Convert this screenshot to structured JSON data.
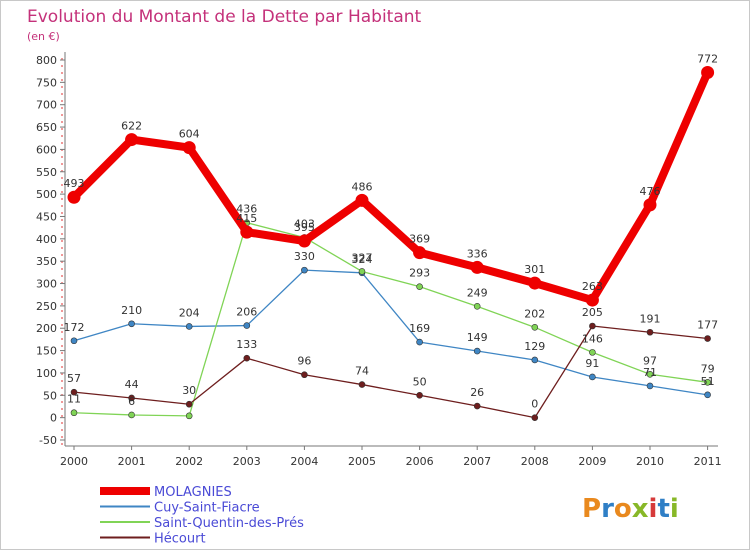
{
  "chart_data": {
    "type": "line",
    "title": "Evolution du Montant de la Dette par Habitant",
    "subtitle": "(en €)",
    "xlabel": "",
    "ylabel": "",
    "categories": [
      "2000",
      "2001",
      "2002",
      "2003",
      "2004",
      "2005",
      "2006",
      "2007",
      "2008",
      "2009",
      "2010",
      "2011"
    ],
    "ylim": [
      -50,
      800
    ],
    "yticks": [
      -50,
      0,
      50,
      100,
      150,
      200,
      250,
      300,
      350,
      400,
      450,
      500,
      550,
      600,
      650,
      700,
      750,
      800
    ],
    "grid": false,
    "legend_position": "bottom-left",
    "series": [
      {
        "name": "MOLAGNIES",
        "color": "#ee0000",
        "values": [
          493,
          622,
          604,
          415,
          395,
          486,
          369,
          336,
          301,
          263,
          476,
          772
        ],
        "labels": [
          "493",
          "622",
          "604",
          "415",
          "395",
          "486",
          "369",
          "336",
          "301",
          "263",
          "476",
          "772"
        ]
      },
      {
        "name": "Cuy-Saint-Fiacre",
        "color": "#3f86c4",
        "values": [
          172,
          210,
          204,
          206,
          330,
          324,
          169,
          149,
          129,
          91,
          71,
          51
        ],
        "labels": [
          "172",
          "210",
          "204",
          "206",
          "330",
          "324",
          "169",
          "149",
          "129",
          "91",
          "71",
          "51"
        ]
      },
      {
        "name": "Saint-Quentin-des-Prés",
        "color": "#80d456",
        "values": [
          11,
          6,
          4,
          436,
          403,
          327,
          293,
          249,
          202,
          146,
          97,
          79
        ],
        "labels": [
          "11",
          "6",
          "",
          "436",
          "403",
          "327",
          "293",
          "249",
          "202",
          "146",
          "97",
          "79"
        ]
      },
      {
        "name": "Hécourt",
        "color": "#6e1e1e",
        "values": [
          57,
          44,
          30,
          133,
          96,
          74,
          50,
          26,
          0,
          205,
          191,
          177
        ],
        "labels": [
          "57",
          "44",
          "30",
          "133",
          "96",
          "74",
          "50",
          "26",
          "0",
          "205",
          "191",
          "177"
        ]
      }
    ]
  },
  "brand": {
    "logo_text": "Proxiti",
    "colors": [
      "#e9891e",
      "#2f7fc6",
      "#e9891e",
      "#88b828",
      "#d63a3a",
      "#2f7fc6",
      "#88b828"
    ]
  }
}
